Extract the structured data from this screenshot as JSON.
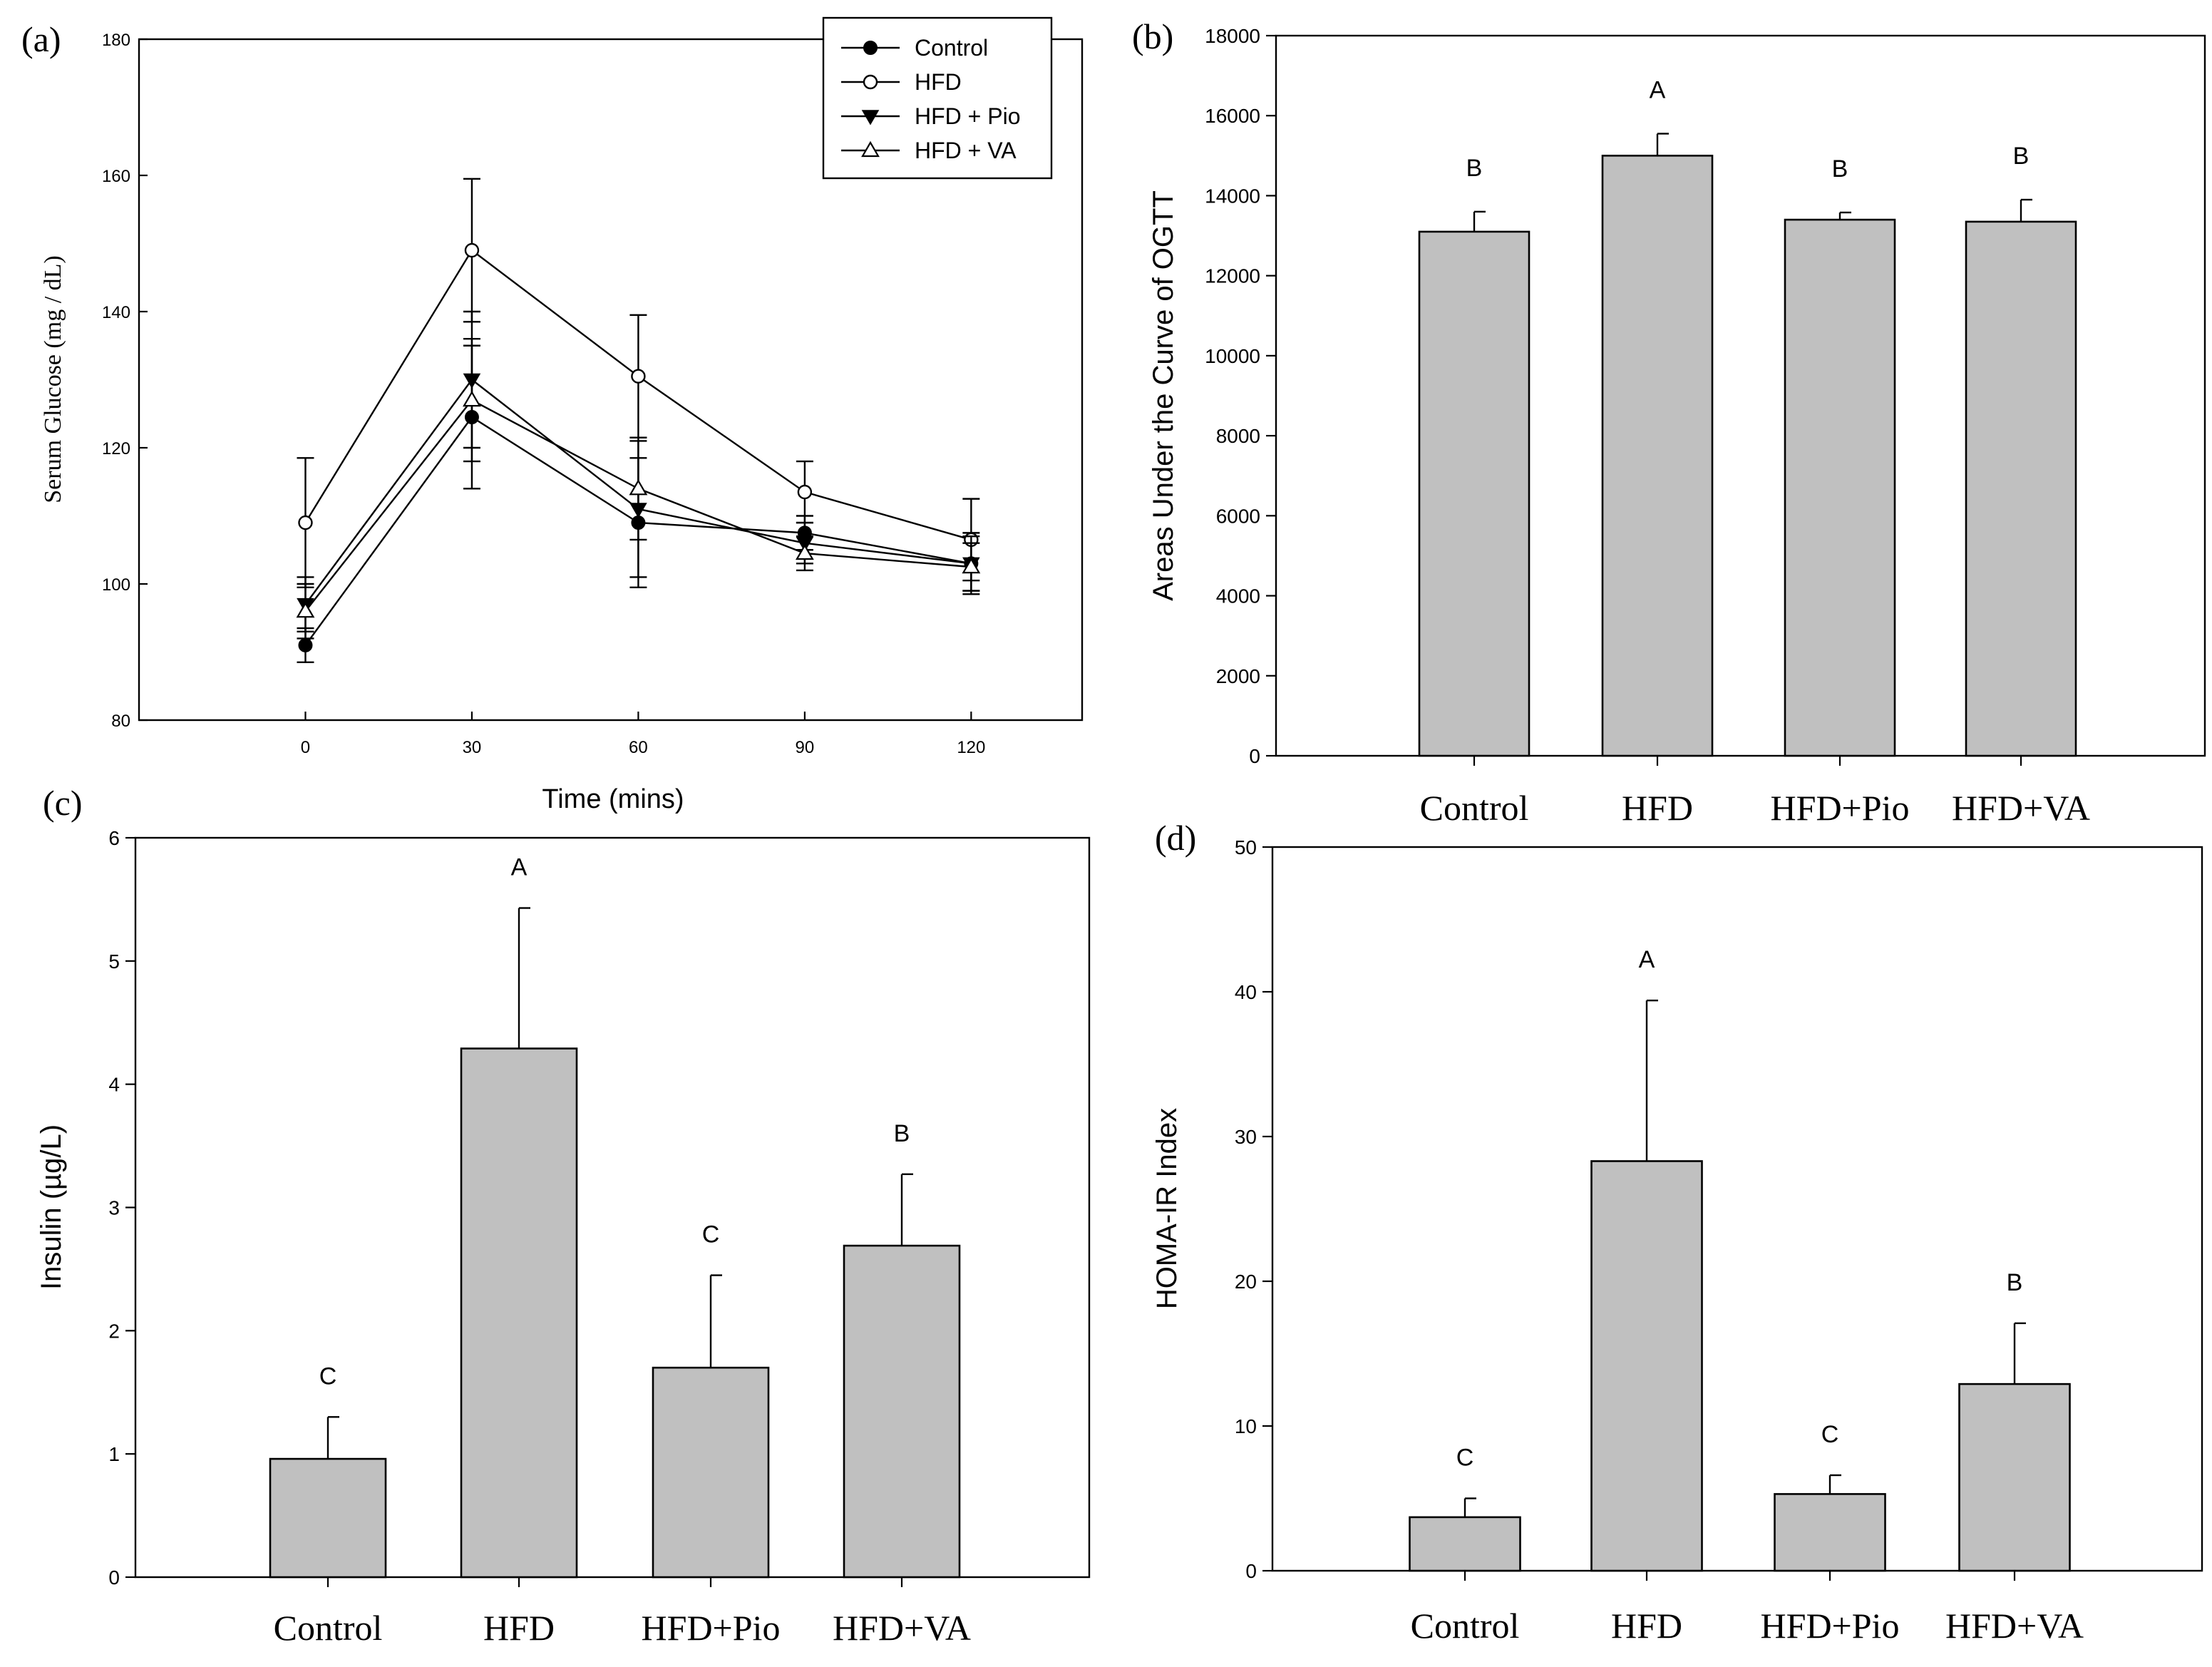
{
  "chart_data": [
    {
      "type": "line",
      "panel_label": "(a)",
      "xlabel": "Time (mins)",
      "ylabel": "Serum Glucose (mg / dL)",
      "x": [
        0,
        30,
        60,
        90,
        120
      ],
      "x_ticks": [
        "0",
        "30",
        "60",
        "90",
        "120"
      ],
      "y_ticks": [
        "80",
        "100",
        "120",
        "140",
        "160",
        "180"
      ],
      "xlim": [
        -30,
        140
      ],
      "ylim": [
        80,
        180
      ],
      "legend_position": "top-right",
      "series": [
        {
          "name": "Control",
          "marker": "circle-filled",
          "values": [
            91,
            124.5,
            109,
            107.5,
            103
          ],
          "errors": [
            2.5,
            10.5,
            9.5,
            2.5,
            4.5
          ]
        },
        {
          "name": "HFD",
          "marker": "circle-open",
          "values": [
            109,
            149,
            130.5,
            113.5,
            106.5
          ],
          "errors": [
            9.5,
            10.5,
            9,
            4.5,
            6
          ]
        },
        {
          "name": "HFD + Pio",
          "marker": "triangle-down-filled",
          "values": [
            97,
            130,
            111,
            106,
            103
          ],
          "errors": [
            4,
            10,
            10,
            3,
            4
          ]
        },
        {
          "name": "HFD + VA",
          "marker": "triangle-up-open",
          "values": [
            96,
            127,
            114,
            104.5,
            102.5
          ],
          "errors": [
            4,
            9,
            7.5,
            2.5,
            3.5
          ]
        }
      ]
    },
    {
      "type": "bar",
      "panel_label": "(b)",
      "ylabel": "Areas Under the Curve of OGTT",
      "categories": [
        "Control",
        "HFD",
        "HFD+Pio",
        "HFD+VA"
      ],
      "values": [
        13100,
        15000,
        13400,
        13350
      ],
      "errors": [
        500,
        550,
        180,
        550
      ],
      "letters": [
        "B",
        "A",
        "B",
        "B"
      ],
      "y_ticks": [
        "0",
        "2000",
        "4000",
        "6000",
        "8000",
        "10000",
        "12000",
        "14000",
        "16000",
        "18000"
      ],
      "ylim": [
        0,
        18000
      ]
    },
    {
      "type": "bar",
      "panel_label": "(c)",
      "ylabel": "Insulin (µg/L)",
      "categories": [
        "Control",
        "HFD",
        "HFD+Pio",
        "HFD+VA"
      ],
      "values": [
        0.96,
        4.29,
        1.7,
        2.69
      ],
      "errors": [
        0.34,
        1.14,
        0.75,
        0.58
      ],
      "letters": [
        "C",
        "A",
        "C",
        "B"
      ],
      "y_ticks": [
        "0",
        "1",
        "2",
        "3",
        "4",
        "5",
        "6"
      ],
      "ylim": [
        0,
        6
      ]
    },
    {
      "type": "bar",
      "panel_label": "(d)",
      "ylabel": "HOMA-IR Index",
      "categories": [
        "Control",
        "HFD",
        "HFD+Pio",
        "HFD+VA"
      ],
      "values": [
        3.7,
        28.3,
        5.3,
        12.9
      ],
      "errors": [
        1.3,
        11.1,
        1.3,
        4.2
      ],
      "letters": [
        "C",
        "A",
        "C",
        "B"
      ],
      "y_ticks": [
        "0",
        "10",
        "20",
        "30",
        "40",
        "50"
      ],
      "ylim": [
        0,
        50
      ]
    }
  ]
}
